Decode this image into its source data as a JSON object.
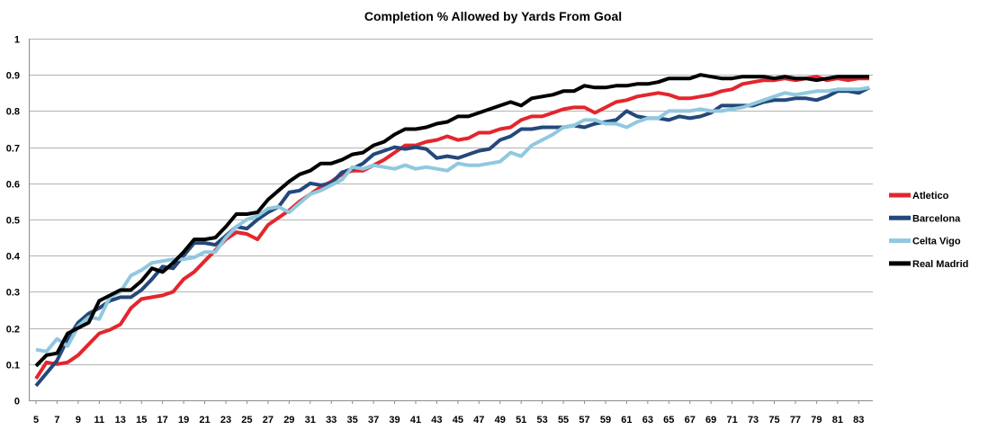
{
  "chart_data": {
    "type": "line",
    "title": "Completion % Allowed by Yards From Goal",
    "xlabel": "",
    "ylabel": "",
    "x": [
      5,
      6,
      7,
      8,
      9,
      10,
      11,
      12,
      13,
      14,
      15,
      16,
      17,
      18,
      19,
      20,
      21,
      22,
      23,
      24,
      25,
      26,
      27,
      28,
      29,
      30,
      31,
      32,
      33,
      34,
      35,
      36,
      37,
      38,
      39,
      40,
      41,
      42,
      43,
      44,
      45,
      46,
      47,
      48,
      49,
      50,
      51,
      52,
      53,
      54,
      55,
      56,
      57,
      58,
      59,
      60,
      61,
      62,
      63,
      64,
      65,
      66,
      67,
      68,
      69,
      70,
      71,
      72,
      73,
      74,
      75,
      76,
      77,
      78,
      79,
      80,
      81,
      82,
      83,
      84
    ],
    "x_tick_labels": [
      "5",
      "7",
      "9",
      "11",
      "13",
      "15",
      "17",
      "19",
      "21",
      "23",
      "25",
      "27",
      "29",
      "31",
      "33",
      "35",
      "37",
      "39",
      "41",
      "43",
      "45",
      "47",
      "49",
      "51",
      "53",
      "55",
      "57",
      "59",
      "61",
      "63",
      "65",
      "67",
      "69",
      "71",
      "73",
      "75",
      "77",
      "79",
      "81",
      "83"
    ],
    "y_tick_labels": [
      "0",
      "0.1",
      "0.2",
      "0.3",
      "0.4",
      "0.5",
      "0.6",
      "0.7",
      "0.8",
      "0.9",
      "1"
    ],
    "ylim": [
      0,
      1
    ],
    "grid": true,
    "legend_position": "right",
    "series": [
      {
        "name": "Atletico",
        "color": "#e3262d",
        "values": [
          0.06,
          0.105,
          0.1,
          0.105,
          0.125,
          0.155,
          0.185,
          0.195,
          0.21,
          0.255,
          0.28,
          0.285,
          0.29,
          0.3,
          0.335,
          0.355,
          0.385,
          0.415,
          0.445,
          0.465,
          0.46,
          0.445,
          0.485,
          0.505,
          0.525,
          0.55,
          0.57,
          0.59,
          0.605,
          0.625,
          0.635,
          0.635,
          0.65,
          0.665,
          0.685,
          0.705,
          0.705,
          0.715,
          0.72,
          0.73,
          0.72,
          0.725,
          0.74,
          0.74,
          0.75,
          0.755,
          0.775,
          0.785,
          0.785,
          0.795,
          0.805,
          0.81,
          0.81,
          0.795,
          0.81,
          0.825,
          0.83,
          0.84,
          0.845,
          0.85,
          0.845,
          0.835,
          0.835,
          0.84,
          0.845,
          0.855,
          0.86,
          0.875,
          0.88,
          0.885,
          0.885,
          0.89,
          0.885,
          0.89,
          0.895,
          0.885,
          0.89,
          0.885,
          0.89,
          0.89
        ]
      },
      {
        "name": "Barcelona",
        "color": "#24487a",
        "values": [
          0.04,
          0.075,
          0.11,
          0.17,
          0.215,
          0.24,
          0.255,
          0.275,
          0.285,
          0.285,
          0.305,
          0.335,
          0.37,
          0.365,
          0.4,
          0.435,
          0.435,
          0.43,
          0.455,
          0.48,
          0.475,
          0.5,
          0.52,
          0.535,
          0.575,
          0.58,
          0.6,
          0.595,
          0.6,
          0.63,
          0.64,
          0.655,
          0.68,
          0.69,
          0.7,
          0.695,
          0.7,
          0.695,
          0.67,
          0.675,
          0.67,
          0.68,
          0.69,
          0.695,
          0.72,
          0.73,
          0.75,
          0.75,
          0.755,
          0.755,
          0.755,
          0.76,
          0.755,
          0.765,
          0.77,
          0.775,
          0.8,
          0.785,
          0.78,
          0.78,
          0.775,
          0.785,
          0.78,
          0.785,
          0.795,
          0.815,
          0.815,
          0.815,
          0.815,
          0.825,
          0.83,
          0.83,
          0.835,
          0.835,
          0.83,
          0.84,
          0.855,
          0.855,
          0.85,
          0.865
        ]
      },
      {
        "name": "Celta Vigo",
        "color": "#90c8df",
        "values": [
          0.14,
          0.135,
          0.17,
          0.15,
          0.205,
          0.23,
          0.225,
          0.285,
          0.3,
          0.345,
          0.36,
          0.38,
          0.385,
          0.39,
          0.39,
          0.395,
          0.41,
          0.41,
          0.45,
          0.48,
          0.5,
          0.51,
          0.53,
          0.535,
          0.52,
          0.545,
          0.57,
          0.58,
          0.595,
          0.61,
          0.645,
          0.64,
          0.65,
          0.645,
          0.64,
          0.65,
          0.64,
          0.645,
          0.64,
          0.635,
          0.655,
          0.65,
          0.65,
          0.655,
          0.66,
          0.685,
          0.675,
          0.705,
          0.72,
          0.735,
          0.755,
          0.76,
          0.775,
          0.775,
          0.765,
          0.765,
          0.755,
          0.77,
          0.78,
          0.78,
          0.8,
          0.8,
          0.8,
          0.805,
          0.8,
          0.8,
          0.805,
          0.81,
          0.82,
          0.83,
          0.84,
          0.85,
          0.845,
          0.85,
          0.855,
          0.855,
          0.86,
          0.86,
          0.86,
          0.865
        ]
      },
      {
        "name": "Real Madrid",
        "color": "#000000",
        "values": [
          0.095,
          0.125,
          0.13,
          0.185,
          0.2,
          0.215,
          0.275,
          0.29,
          0.305,
          0.305,
          0.33,
          0.365,
          0.355,
          0.38,
          0.41,
          0.445,
          0.445,
          0.45,
          0.48,
          0.515,
          0.515,
          0.52,
          0.555,
          0.58,
          0.605,
          0.625,
          0.635,
          0.655,
          0.655,
          0.665,
          0.68,
          0.685,
          0.705,
          0.715,
          0.735,
          0.75,
          0.75,
          0.755,
          0.765,
          0.77,
          0.785,
          0.785,
          0.795,
          0.805,
          0.815,
          0.825,
          0.815,
          0.835,
          0.84,
          0.845,
          0.855,
          0.855,
          0.87,
          0.865,
          0.865,
          0.87,
          0.87,
          0.875,
          0.875,
          0.88,
          0.89,
          0.89,
          0.89,
          0.9,
          0.895,
          0.89,
          0.89,
          0.895,
          0.895,
          0.895,
          0.89,
          0.895,
          0.89,
          0.89,
          0.885,
          0.89,
          0.895,
          0.895,
          0.895,
          0.895
        ]
      }
    ]
  }
}
